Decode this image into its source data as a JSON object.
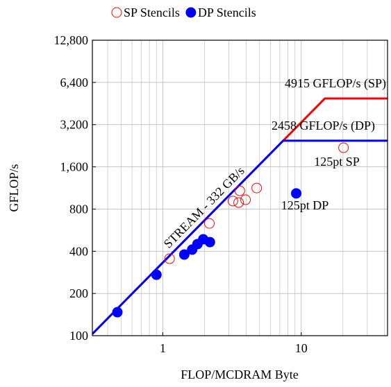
{
  "chart_data": {
    "type": "scatter",
    "xlabel": "FLOP/MCDRAM Byte",
    "ylabel": "GFLOP/s",
    "xlog": true,
    "ylog": true,
    "grid": true,
    "xlim": [
      0.31,
      42
    ],
    "ylim": [
      100,
      12800
    ],
    "xticks": [
      1,
      10
    ],
    "xgrid_minor": [
      0.4,
      0.5,
      0.6,
      0.7,
      0.8,
      0.9,
      2,
      3,
      4,
      5,
      6,
      7,
      8,
      9,
      20,
      30,
      40
    ],
    "yticks": [
      100,
      200,
      400,
      800,
      {
        "value": 1600,
        "label": "1,600"
      },
      {
        "value": 3200,
        "label": "3,200"
      },
      {
        "value": 6400,
        "label": "6,400"
      },
      {
        "value": 12800,
        "label": "12,800"
      }
    ],
    "legend": "top",
    "series": [
      {
        "name": "SP Stencils",
        "color": "#ff0000",
        "filled": false,
        "x": [
          1.12,
          2.17,
          3.21,
          3.53,
          3.6,
          3.96,
          4.77,
          20.2
        ],
        "values": [
          354,
          632,
          912,
          890,
          1080,
          932,
          1130,
          2190
        ]
      },
      {
        "name": "DP Stencils",
        "color": "#0000ff",
        "filled": true,
        "x": [
          0.47,
          0.9,
          1.43,
          1.63,
          1.78,
          1.96,
          2.19,
          9.2
        ],
        "values": [
          147,
          272,
          379,
          411,
          450,
          487,
          465,
          1035
        ]
      }
    ],
    "rooflines": [
      {
        "color": "#ff0000",
        "peak": 4915,
        "bandwidth": 332,
        "label": "4915 GFLOP/s (SP)"
      },
      {
        "color": "#0000ff",
        "peak": 2458,
        "bandwidth": 332,
        "label": "2458 GFLOP/s (DP)"
      }
    ],
    "bandwidth_label": "STREAM - 332 GB/s",
    "annotations": [
      "125pt SP",
      "125pt DP"
    ]
  }
}
